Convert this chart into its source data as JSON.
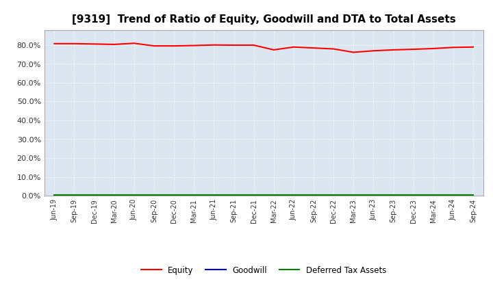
{
  "title": "[9319]  Trend of Ratio of Equity, Goodwill and DTA to Total Assets",
  "x_labels": [
    "Jun-19",
    "Sep-19",
    "Dec-19",
    "Mar-20",
    "Jun-20",
    "Sep-20",
    "Dec-20",
    "Mar-21",
    "Jun-21",
    "Sep-21",
    "Dec-21",
    "Mar-22",
    "Jun-22",
    "Sep-22",
    "Dec-22",
    "Mar-23",
    "Jun-23",
    "Sep-23",
    "Dec-23",
    "Mar-24",
    "Jun-24",
    "Sep-24"
  ],
  "equity": [
    0.808,
    0.808,
    0.806,
    0.804,
    0.81,
    0.796,
    0.796,
    0.798,
    0.801,
    0.8,
    0.8,
    0.775,
    0.79,
    0.785,
    0.78,
    0.762,
    0.77,
    0.775,
    0.778,
    0.782,
    0.788,
    0.79
  ],
  "goodwill": [
    0.001,
    0.001,
    0.001,
    0.001,
    0.001,
    0.001,
    0.001,
    0.001,
    0.001,
    0.001,
    0.001,
    0.001,
    0.001,
    0.001,
    0.001,
    0.001,
    0.001,
    0.001,
    0.001,
    0.001,
    0.001,
    0.001
  ],
  "dta": [
    0.003,
    0.003,
    0.003,
    0.003,
    0.003,
    0.003,
    0.003,
    0.003,
    0.003,
    0.003,
    0.003,
    0.003,
    0.003,
    0.003,
    0.003,
    0.003,
    0.003,
    0.003,
    0.003,
    0.003,
    0.003,
    0.003
  ],
  "equity_color": "#ff0000",
  "goodwill_color": "#0000cc",
  "dta_color": "#008000",
  "ylim": [
    0.0,
    0.88
  ],
  "yticks": [
    0.0,
    0.1,
    0.2,
    0.3,
    0.4,
    0.5,
    0.6,
    0.7,
    0.8
  ],
  "background_color": "#ffffff",
  "plot_bg_color": "#dce6f0",
  "grid_color": "#ffffff",
  "title_fontsize": 11,
  "legend_labels": [
    "Equity",
    "Goodwill",
    "Deferred Tax Assets"
  ]
}
